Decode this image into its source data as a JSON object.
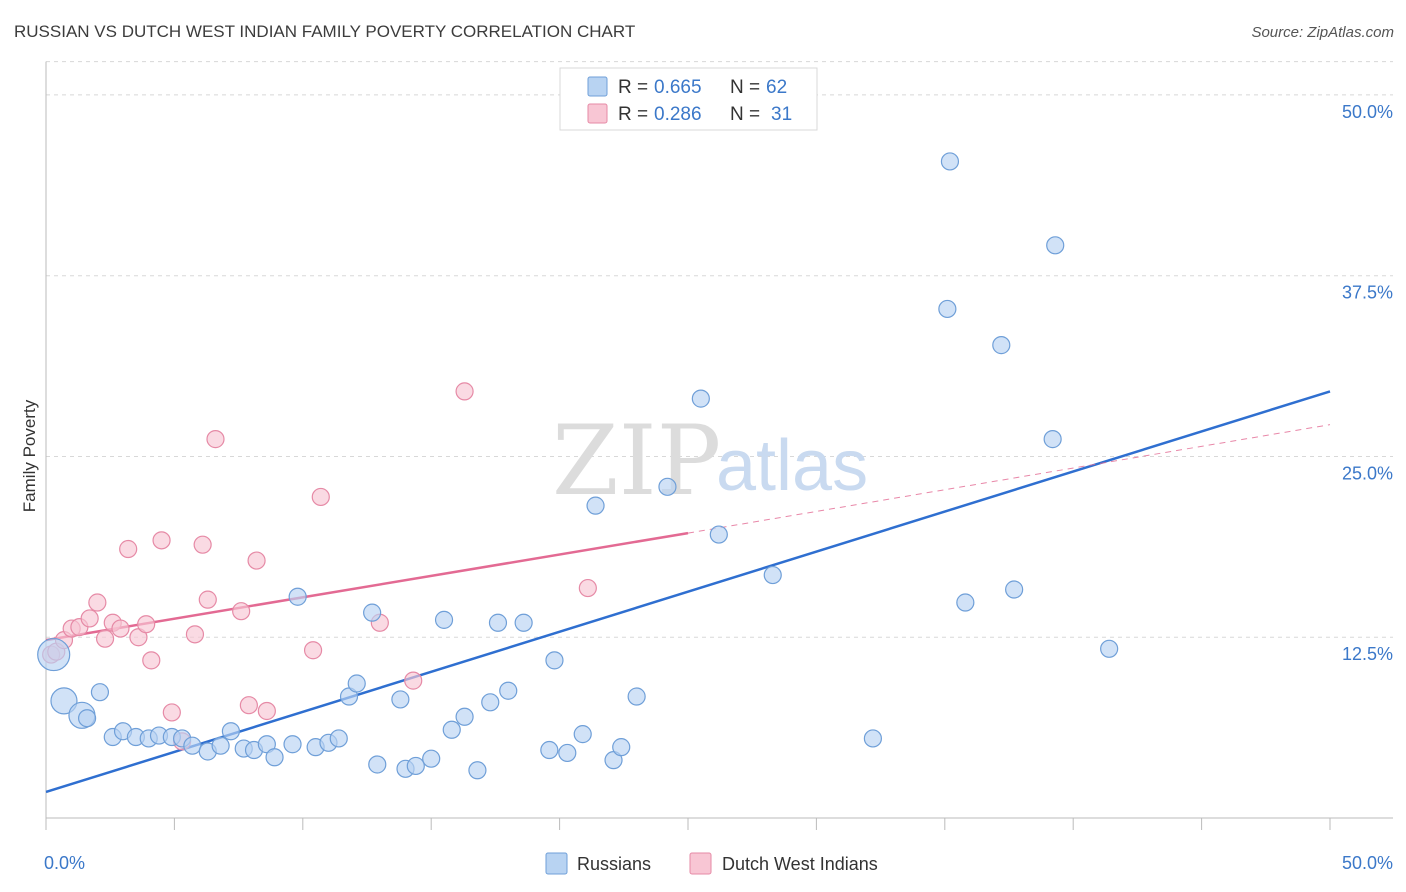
{
  "title": "RUSSIAN VS DUTCH WEST INDIAN FAMILY POVERTY CORRELATION CHART",
  "source": "Source: ZipAtlas.com",
  "watermark": {
    "zip": "ZIP",
    "atlas": "atlas"
  },
  "colors": {
    "russians_fill": "#b8d3f2",
    "russians_stroke": "#6f9fd8",
    "russians_line": "#2f6fd0",
    "dutch_fill": "#f8c6d4",
    "dutch_stroke": "#e68aa6",
    "dutch_line": "#e36a93",
    "grid": "#d8d8d8",
    "axis": "#bbbbbb",
    "tick_text": "#3b78c9"
  },
  "legend": {
    "rows": [
      {
        "r_label": "R =",
        "r_value": "0.665",
        "n_label": "N =",
        "n_value": "62"
      },
      {
        "r_label": "R =",
        "r_value": "0.286",
        "n_label": "N =",
        "n_value": "31"
      }
    ]
  },
  "bottom_legend": {
    "russians": "Russians",
    "dutch": "Dutch West Indians"
  },
  "chart_data": {
    "type": "scatter",
    "title": "RUSSIAN VS DUTCH WEST INDIAN FAMILY POVERTY CORRELATION CHART",
    "xlabel": "",
    "ylabel": "Family Poverty",
    "xlim": [
      0,
      50
    ],
    "ylim": [
      0,
      52
    ],
    "x_tick_labels": [
      "0.0%",
      "50.0%"
    ],
    "y_ticks": [
      12.5,
      25.0,
      37.5,
      50.0
    ],
    "y_tick_labels": [
      "12.5%",
      "25.0%",
      "37.5%",
      "50.0%"
    ],
    "grid": true,
    "series": [
      {
        "name": "Russians",
        "R": 0.665,
        "N": 62,
        "trend": {
          "x": [
            0,
            50
          ],
          "y": [
            1.8,
            29.5
          ],
          "style": "solid"
        },
        "points": [
          {
            "x": 0.3,
            "y": 11.3,
            "size": "large"
          },
          {
            "x": 0.7,
            "y": 8.1,
            "size": "medium"
          },
          {
            "x": 1.4,
            "y": 7.1,
            "size": "medium"
          },
          {
            "x": 1.6,
            "y": 6.9
          },
          {
            "x": 2.1,
            "y": 8.7
          },
          {
            "x": 2.6,
            "y": 5.6
          },
          {
            "x": 3.0,
            "y": 6.0
          },
          {
            "x": 3.5,
            "y": 5.6
          },
          {
            "x": 4.0,
            "y": 5.5
          },
          {
            "x": 4.4,
            "y": 5.7
          },
          {
            "x": 4.9,
            "y": 5.6
          },
          {
            "x": 5.3,
            "y": 5.5
          },
          {
            "x": 5.7,
            "y": 5.0
          },
          {
            "x": 6.3,
            "y": 4.6
          },
          {
            "x": 6.8,
            "y": 5.0
          },
          {
            "x": 7.2,
            "y": 6.0
          },
          {
            "x": 7.7,
            "y": 4.8
          },
          {
            "x": 8.1,
            "y": 4.7
          },
          {
            "x": 8.6,
            "y": 5.1
          },
          {
            "x": 8.9,
            "y": 4.2
          },
          {
            "x": 9.6,
            "y": 5.1
          },
          {
            "x": 9.8,
            "y": 15.3
          },
          {
            "x": 10.5,
            "y": 4.9
          },
          {
            "x": 11.0,
            "y": 5.2
          },
          {
            "x": 11.4,
            "y": 5.5
          },
          {
            "x": 11.8,
            "y": 8.4
          },
          {
            "x": 12.1,
            "y": 9.3
          },
          {
            "x": 12.7,
            "y": 14.2
          },
          {
            "x": 12.9,
            "y": 3.7
          },
          {
            "x": 13.8,
            "y": 8.2
          },
          {
            "x": 14.0,
            "y": 3.4
          },
          {
            "x": 14.4,
            "y": 3.6
          },
          {
            "x": 15.0,
            "y": 4.1
          },
          {
            "x": 15.5,
            "y": 13.7
          },
          {
            "x": 15.8,
            "y": 6.1
          },
          {
            "x": 16.3,
            "y": 7.0
          },
          {
            "x": 16.8,
            "y": 3.3
          },
          {
            "x": 17.3,
            "y": 8.0
          },
          {
            "x": 17.6,
            "y": 13.5
          },
          {
            "x": 18.0,
            "y": 8.8
          },
          {
            "x": 18.6,
            "y": 13.5
          },
          {
            "x": 19.6,
            "y": 4.7
          },
          {
            "x": 19.8,
            "y": 10.9
          },
          {
            "x": 20.3,
            "y": 4.5
          },
          {
            "x": 20.9,
            "y": 5.8
          },
          {
            "x": 21.4,
            "y": 21.6
          },
          {
            "x": 22.1,
            "y": 4.0
          },
          {
            "x": 22.4,
            "y": 4.9
          },
          {
            "x": 23.0,
            "y": 8.4
          },
          {
            "x": 24.2,
            "y": 22.9
          },
          {
            "x": 25.5,
            "y": 29.0
          },
          {
            "x": 26.2,
            "y": 19.6
          },
          {
            "x": 28.3,
            "y": 16.8
          },
          {
            "x": 32.2,
            "y": 5.5
          },
          {
            "x": 35.2,
            "y": 45.4
          },
          {
            "x": 35.1,
            "y": 35.2
          },
          {
            "x": 35.8,
            "y": 14.9
          },
          {
            "x": 37.2,
            "y": 32.7
          },
          {
            "x": 37.7,
            "y": 15.8
          },
          {
            "x": 39.3,
            "y": 39.6
          },
          {
            "x": 39.2,
            "y": 26.2
          },
          {
            "x": 41.4,
            "y": 11.7
          }
        ]
      },
      {
        "name": "Dutch West Indians",
        "R": 0.286,
        "N": 31,
        "trend": {
          "x": [
            0,
            25
          ],
          "y": [
            12.3,
            19.7
          ],
          "style": "solid",
          "extension": {
            "x": [
              25,
              50
            ],
            "y": [
              19.7,
              27.2
            ],
            "style": "dashed"
          }
        },
        "points": [
          {
            "x": 0.2,
            "y": 11.3
          },
          {
            "x": 0.4,
            "y": 11.5
          },
          {
            "x": 0.7,
            "y": 12.3
          },
          {
            "x": 1.0,
            "y": 13.1
          },
          {
            "x": 1.3,
            "y": 13.2
          },
          {
            "x": 1.7,
            "y": 13.8
          },
          {
            "x": 2.0,
            "y": 14.9
          },
          {
            "x": 2.3,
            "y": 12.4
          },
          {
            "x": 2.6,
            "y": 13.5
          },
          {
            "x": 2.9,
            "y": 13.1
          },
          {
            "x": 3.2,
            "y": 18.6
          },
          {
            "x": 3.6,
            "y": 12.5
          },
          {
            "x": 3.9,
            "y": 13.4
          },
          {
            "x": 4.1,
            "y": 10.9
          },
          {
            "x": 4.5,
            "y": 19.2
          },
          {
            "x": 4.9,
            "y": 7.3
          },
          {
            "x": 5.3,
            "y": 5.3
          },
          {
            "x": 5.8,
            "y": 12.7
          },
          {
            "x": 6.1,
            "y": 18.9
          },
          {
            "x": 6.3,
            "y": 15.1
          },
          {
            "x": 6.6,
            "y": 26.2
          },
          {
            "x": 7.6,
            "y": 14.3
          },
          {
            "x": 7.9,
            "y": 7.8
          },
          {
            "x": 8.2,
            "y": 17.8
          },
          {
            "x": 8.6,
            "y": 7.4
          },
          {
            "x": 10.4,
            "y": 11.6
          },
          {
            "x": 10.7,
            "y": 22.2
          },
          {
            "x": 13.0,
            "y": 13.5
          },
          {
            "x": 14.3,
            "y": 9.5
          },
          {
            "x": 16.3,
            "y": 29.5
          },
          {
            "x": 21.1,
            "y": 15.9
          }
        ]
      }
    ]
  }
}
